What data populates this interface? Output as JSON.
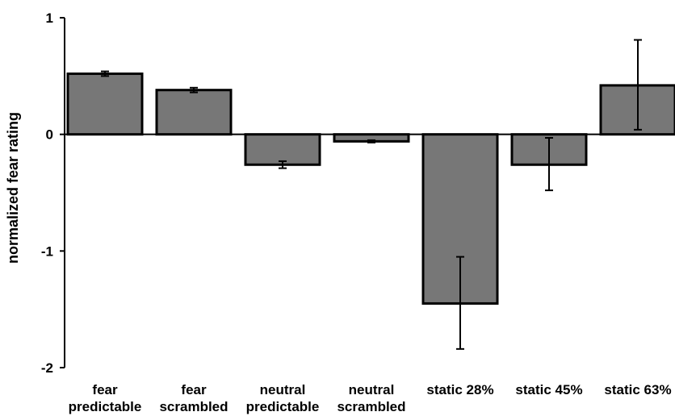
{
  "chart_data": {
    "type": "bar",
    "title": "",
    "xlabel": "",
    "ylabel": "normalized fear rating",
    "ylim": [
      -2,
      1
    ],
    "yticks": [
      1,
      0,
      -1,
      -2
    ],
    "ytick_labels": [
      "1",
      "0",
      "-1",
      "-2"
    ],
    "grid": false,
    "categories": [
      [
        "fear",
        "predictable"
      ],
      [
        "fear",
        "scrambled"
      ],
      [
        "neutral",
        "predictable"
      ],
      [
        "neutral",
        "scrambled"
      ],
      [
        "static 28%"
      ],
      [
        "static 45%"
      ],
      [
        "static 63%"
      ]
    ],
    "values": [
      0.52,
      0.38,
      -0.26,
      -0.06,
      -1.45,
      -0.26,
      0.42
    ],
    "error_low": [
      0.5,
      0.36,
      -0.29,
      -0.07,
      -1.84,
      -0.48,
      0.04
    ],
    "error_high": [
      0.54,
      0.4,
      -0.23,
      -0.05,
      -1.05,
      -0.03,
      0.81
    ],
    "bar_color": "#777777",
    "edge_color": "#000000"
  }
}
